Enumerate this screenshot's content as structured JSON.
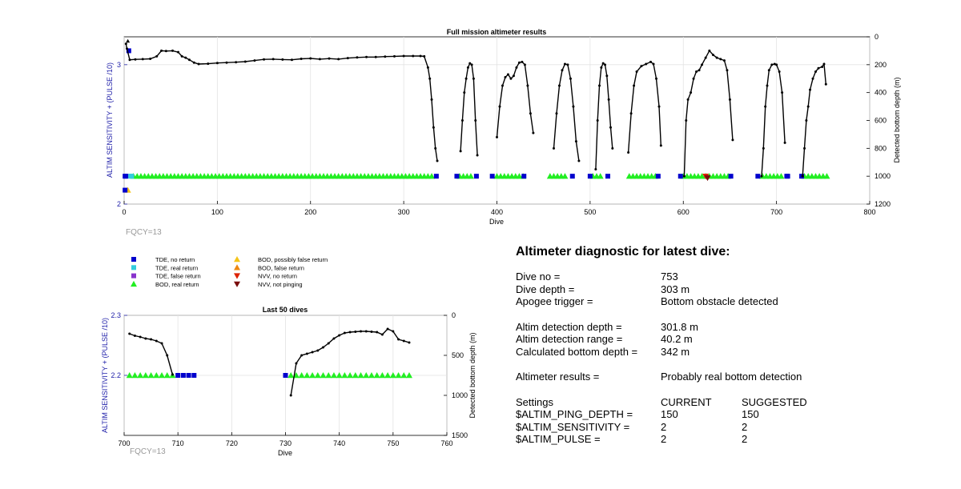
{
  "colors": {
    "tde_no_return": "#0000cd",
    "tde_real_return": "#33ccdd",
    "tde_false_return": "#8833cc",
    "bod_real_return": "#22ee22",
    "bod_possibly_false_return": "#f5c518",
    "bod_false_return": "#ee8811",
    "nvv_no_return": "#dd2200",
    "nvv_not_pinging": "#7a0c0c",
    "left_axis_label": "#2222aa",
    "fqcy_label": "#999999"
  },
  "legend": {
    "items": [
      {
        "label": "TDE, no return",
        "marker": "square",
        "color": "#0000cd"
      },
      {
        "label": "TDE, real return",
        "marker": "square",
        "color": "#33ccdd"
      },
      {
        "label": "TDE, false return",
        "marker": "square",
        "color": "#8833cc"
      },
      {
        "label": "BOD, real return",
        "marker": "triangle-up",
        "color": "#22ee22"
      },
      {
        "label": "BOD, possibly false return",
        "marker": "triangle-up",
        "color": "#f5c518"
      },
      {
        "label": "BOD, false return",
        "marker": "triangle-up",
        "color": "#ee8811"
      },
      {
        "label": "NVV, no return",
        "marker": "triangle-down",
        "color": "#dd2200"
      },
      {
        "label": "NVV, not pinging",
        "marker": "triangle-down",
        "color": "#7a0c0c"
      }
    ]
  },
  "diagnostic": {
    "heading": "Altimeter diagnostic for latest dive:",
    "dive_no_label": "Dive no =",
    "dive_no": "753",
    "dive_depth_label": "Dive depth =",
    "dive_depth": "303 m",
    "apogee_label": "Apogee trigger =",
    "apogee": "Bottom obstacle detected",
    "det_depth_label": "Altim detection depth =",
    "det_depth": "301.8 m",
    "det_range_label": "Altim detection range =",
    "det_range": "40.2 m",
    "calc_depth_label": "Calculated bottom depth =",
    "calc_depth": "342 m",
    "results_label": "Altimeter results =",
    "results": "Probably real bottom detection",
    "settings_label": "Settings",
    "current_label": "CURRENT",
    "suggested_label": "SUGGESTED",
    "ping_depth_label": "$ALTIM_PING_DEPTH =",
    "ping_depth_current": "150",
    "ping_depth_suggested": "150",
    "sensitivity_label": "$ALTIM_SENSITIVITY =",
    "sensitivity_current": "2",
    "sensitivity_suggested": "2",
    "pulse_label": "$ALTIM_PULSE =",
    "pulse_current": "2",
    "pulse_suggested": "2"
  },
  "chart_data": [
    {
      "type": "scatter",
      "title": "Full mission altimeter results",
      "xlabel": "Dive",
      "ylabel": "ALTIM SENSITIVITY + (PULSE /10)",
      "ylabel_right": "Detected bottom depth (m)",
      "xlim": [
        0,
        800
      ],
      "ylim": [
        2,
        3.2
      ],
      "ylim_right": [
        1200,
        0
      ],
      "right_axis_reversed": true,
      "xticks": [
        "0",
        "100",
        "200",
        "300",
        "400",
        "500",
        "600",
        "700",
        "800"
      ],
      "yticks_left": [
        "2",
        "3"
      ],
      "yticks_right": [
        "0",
        "200",
        "400",
        "600",
        "800",
        "1000",
        "1200"
      ],
      "annotation": "FQCY=13",
      "grid": true,
      "depth_series": [
        [
          2,
          50
        ],
        [
          3,
          85
        ],
        [
          6,
          165
        ],
        [
          12,
          162
        ],
        [
          20,
          160
        ],
        [
          28,
          158
        ],
        [
          35,
          140
        ],
        [
          40,
          100
        ],
        [
          45,
          102
        ],
        [
          52,
          100
        ],
        [
          58,
          110
        ],
        [
          62,
          140
        ],
        [
          66,
          150
        ],
        [
          70,
          165
        ],
        [
          75,
          185
        ],
        [
          80,
          195
        ],
        [
          90,
          193
        ],
        [
          100,
          188
        ],
        [
          110,
          185
        ],
        [
          120,
          182
        ],
        [
          130,
          178
        ],
        [
          140,
          170
        ],
        [
          150,
          162
        ],
        [
          160,
          160
        ],
        [
          170,
          163
        ],
        [
          180,
          165
        ],
        [
          190,
          158
        ],
        [
          200,
          155
        ],
        [
          210,
          160
        ],
        [
          220,
          156
        ],
        [
          230,
          160
        ],
        [
          240,
          153
        ],
        [
          250,
          148
        ],
        [
          260,
          145
        ],
        [
          270,
          145
        ],
        [
          280,
          142
        ],
        [
          290,
          140
        ],
        [
          300,
          138
        ],
        [
          310,
          138
        ],
        [
          318,
          138
        ],
        [
          322,
          140
        ],
        [
          326,
          220
        ],
        [
          328,
          300
        ],
        [
          330,
          450
        ],
        [
          332,
          650
        ],
        [
          334,
          800
        ],
        [
          336,
          890
        ],
        [
          361,
          820
        ],
        [
          363,
          600
        ],
        [
          365,
          400
        ],
        [
          367,
          300
        ],
        [
          369,
          220
        ],
        [
          371,
          190
        ],
        [
          373,
          200
        ],
        [
          375,
          300
        ],
        [
          377,
          600
        ],
        [
          379,
          850
        ],
        [
          400,
          720
        ],
        [
          403,
          500
        ],
        [
          406,
          350
        ],
        [
          409,
          290
        ],
        [
          412,
          270
        ],
        [
          415,
          300
        ],
        [
          418,
          280
        ],
        [
          421,
          220
        ],
        [
          424,
          185
        ],
        [
          427,
          180
        ],
        [
          430,
          200
        ],
        [
          433,
          350
        ],
        [
          436,
          550
        ],
        [
          439,
          690
        ],
        [
          461,
          800
        ],
        [
          464,
          550
        ],
        [
          467,
          350
        ],
        [
          470,
          240
        ],
        [
          473,
          195
        ],
        [
          476,
          200
        ],
        [
          479,
          300
        ],
        [
          482,
          500
        ],
        [
          485,
          750
        ],
        [
          488,
          890
        ],
        [
          506,
          950
        ],
        [
          508,
          600
        ],
        [
          510,
          350
        ],
        [
          512,
          220
        ],
        [
          514,
          190
        ],
        [
          516,
          200
        ],
        [
          518,
          280
        ],
        [
          520,
          450
        ],
        [
          522,
          650
        ],
        [
          524,
          800
        ],
        [
          541,
          830
        ],
        [
          544,
          550
        ],
        [
          547,
          350
        ],
        [
          550,
          250
        ],
        [
          555,
          210
        ],
        [
          560,
          195
        ],
        [
          565,
          180
        ],
        [
          568,
          195
        ],
        [
          571,
          300
        ],
        [
          574,
          500
        ],
        [
          576,
          780
        ],
        [
          601,
          1000
        ],
        [
          603,
          600
        ],
        [
          605,
          450
        ],
        [
          608,
          400
        ],
        [
          611,
          300
        ],
        [
          614,
          250
        ],
        [
          617,
          240
        ],
        [
          620,
          200
        ],
        [
          624,
          150
        ],
        [
          628,
          100
        ],
        [
          632,
          130
        ],
        [
          636,
          150
        ],
        [
          640,
          160
        ],
        [
          644,
          170
        ],
        [
          647,
          240
        ],
        [
          650,
          450
        ],
        [
          653,
          740
        ],
        [
          684,
          1000
        ],
        [
          686,
          800
        ],
        [
          688,
          500
        ],
        [
          690,
          350
        ],
        [
          692,
          240
        ],
        [
          695,
          200
        ],
        [
          698,
          195
        ],
        [
          700,
          200
        ],
        [
          703,
          250
        ],
        [
          706,
          400
        ],
        [
          709,
          760
        ],
        [
          728,
          1000
        ],
        [
          730,
          800
        ],
        [
          732,
          600
        ],
        [
          734,
          500
        ],
        [
          736,
          380
        ],
        [
          739,
          300
        ],
        [
          742,
          250
        ],
        [
          745,
          225
        ],
        [
          749,
          215
        ],
        [
          751,
          195
        ],
        [
          753,
          340
        ]
      ],
      "tde_no_return_dives": [
        1,
        2,
        335,
        357,
        378,
        395,
        429,
        481,
        500,
        519,
        573,
        597,
        651,
        680,
        711,
        712,
        727
      ],
      "tde_real_return_dives": [
        7,
        8
      ],
      "tde_false_return_dives": [],
      "bod_real_return_segments": [
        [
          10,
          330
        ],
        [
          360,
          372
        ],
        [
          400,
          430
        ],
        [
          457,
          475
        ],
        [
          503,
          514
        ],
        [
          542,
          572
        ],
        [
          600,
          648
        ],
        [
          685,
          706
        ],
        [
          730,
          755
        ]
      ],
      "bod_possibly_false_return_dives": [
        4
      ],
      "bod_false_return_dives": [],
      "nvv_no_return_dives": [
        624
      ],
      "nvv_not_pinging_dives": [
        626
      ],
      "top_marker_dives": [
        [
          4,
          3.17
        ],
        [
          5,
          3.1
        ]
      ]
    },
    {
      "type": "scatter",
      "title": "Last 50 dives",
      "xlabel": "Dive",
      "ylabel": "ALTIM SENSITIVITY + (PULSE /10)",
      "ylabel_right": "Detected bottom depth (m)",
      "xlim": [
        700,
        760
      ],
      "ylim": [
        2.1,
        2.3
      ],
      "ylim_right": [
        1500,
        0
      ],
      "right_axis_reversed": true,
      "xticks": [
        "700",
        "710",
        "720",
        "730",
        "740",
        "750",
        "760"
      ],
      "yticks_left": [
        "2.2",
        "2.3"
      ],
      "yticks_right": [
        "0",
        "500",
        "1000",
        "1500"
      ],
      "annotation": "FQCY=13",
      "grid": true,
      "depth_series": [
        [
          701,
          230
        ],
        [
          702,
          255
        ],
        [
          703,
          270
        ],
        [
          704,
          290
        ],
        [
          705,
          300
        ],
        [
          706,
          320
        ],
        [
          707,
          350
        ],
        [
          708,
          500
        ],
        [
          709,
          740
        ],
        [
          731,
          1000
        ],
        [
          732,
          600
        ],
        [
          733,
          500
        ],
        [
          734,
          480
        ],
        [
          735,
          460
        ],
        [
          736,
          440
        ],
        [
          737,
          400
        ],
        [
          738,
          350
        ],
        [
          739,
          290
        ],
        [
          740,
          250
        ],
        [
          741,
          220
        ],
        [
          742,
          210
        ],
        [
          743,
          205
        ],
        [
          744,
          200
        ],
        [
          745,
          200
        ],
        [
          746,
          205
        ],
        [
          747,
          210
        ],
        [
          748,
          240
        ],
        [
          749,
          170
        ],
        [
          750,
          200
        ],
        [
          751,
          300
        ],
        [
          752,
          320
        ],
        [
          753,
          340
        ]
      ],
      "bod_real_return_dives": [
        701,
        702,
        703,
        704,
        705,
        706,
        707,
        708,
        709,
        731,
        732,
        733,
        734,
        735,
        736,
        737,
        738,
        739,
        740,
        741,
        742,
        743,
        744,
        745,
        746,
        747,
        748,
        749,
        750,
        751,
        752,
        753
      ],
      "tde_no_return_dives": [
        710,
        711,
        712,
        713,
        730
      ]
    }
  ]
}
